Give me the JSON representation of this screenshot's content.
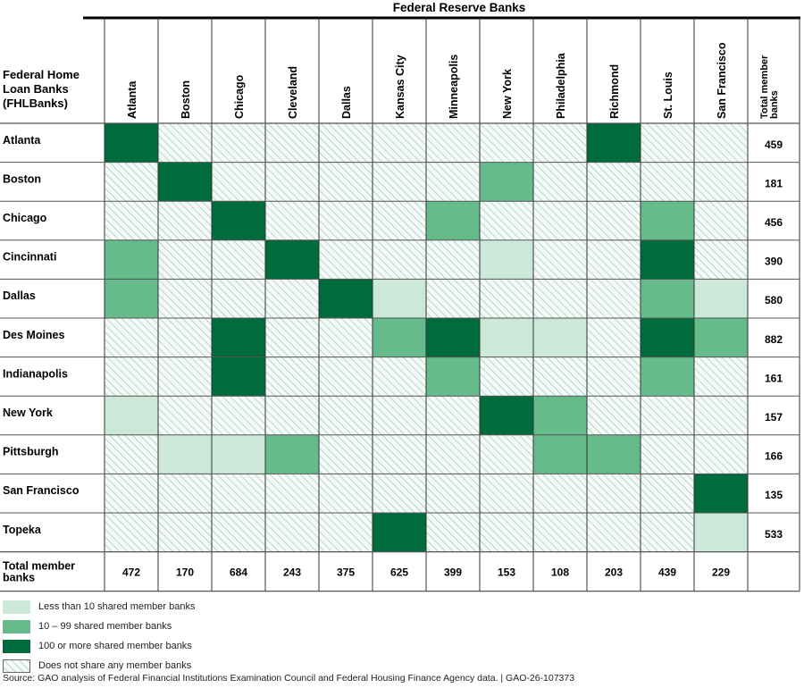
{
  "chart_data": {
    "type": "heatmap",
    "title": "Federal Reserve Banks",
    "row_header": "Federal Home Loan Banks (FHLBanks)",
    "row_header_lines": [
      "Federal Home",
      "Loan Banks",
      "(FHLBanks)"
    ],
    "columns": [
      "Atlanta",
      "Boston",
      "Chicago",
      "Cleveland",
      "Dallas",
      "Kansas City",
      "Minneapolis",
      "New York",
      "Philadelphia",
      "Richmond",
      "St. Louis",
      "San Francisco"
    ],
    "total_column_header_lines": [
      "Total member",
      "banks"
    ],
    "rows": [
      "Atlanta",
      "Boston",
      "Chicago",
      "Cincinnati",
      "Dallas",
      "Des Moines",
      "Indianapolis",
      "New York",
      "Pittsburgh",
      "San Francisco",
      "Topeka"
    ],
    "total_row_header_lines": [
      "Total member",
      "banks"
    ],
    "category_scale": "0 = Does not share any member banks, 1 = Less than 10, 2 = 10 – 99, 3 = 100 or more",
    "values": [
      [
        3,
        0,
        0,
        0,
        0,
        0,
        0,
        0,
        0,
        3,
        0,
        0
      ],
      [
        0,
        3,
        0,
        0,
        0,
        0,
        0,
        2,
        0,
        0,
        0,
        0
      ],
      [
        0,
        0,
        3,
        0,
        0,
        0,
        2,
        0,
        0,
        0,
        2,
        0
      ],
      [
        2,
        0,
        0,
        3,
        0,
        0,
        0,
        1,
        0,
        0,
        3,
        0
      ],
      [
        2,
        0,
        0,
        0,
        3,
        1,
        0,
        0,
        0,
        0,
        2,
        1
      ],
      [
        0,
        0,
        3,
        0,
        0,
        2,
        3,
        1,
        1,
        0,
        3,
        2
      ],
      [
        0,
        0,
        3,
        0,
        0,
        0,
        2,
        0,
        0,
        0,
        2,
        0
      ],
      [
        1,
        0,
        0,
        0,
        0,
        0,
        0,
        3,
        2,
        0,
        0,
        0
      ],
      [
        0,
        1,
        1,
        2,
        0,
        0,
        0,
        0,
        2,
        2,
        0,
        0
      ],
      [
        0,
        0,
        0,
        0,
        0,
        0,
        0,
        0,
        0,
        0,
        0,
        3
      ],
      [
        0,
        0,
        0,
        0,
        0,
        3,
        0,
        0,
        0,
        0,
        0,
        1
      ]
    ],
    "row_totals": [
      459,
      181,
      456,
      390,
      580,
      882,
      161,
      157,
      166,
      135,
      533
    ],
    "column_totals": [
      472,
      170,
      684,
      243,
      375,
      625,
      399,
      153,
      108,
      203,
      439,
      229
    ],
    "legend": [
      {
        "label": "Less than 10 shared member banks",
        "level": 1,
        "color": "#cce8d8"
      },
      {
        "label": "10 – 99 shared member banks",
        "level": 2,
        "color": "#66bb8a"
      },
      {
        "label": "100 or more shared member banks",
        "level": 3,
        "color": "#006b3c"
      },
      {
        "label": "Does not share any member banks",
        "level": 0,
        "color": "#ffffff"
      }
    ],
    "hatch_color": "#5a9a8a",
    "legend_position": "bottom-left"
  },
  "source": "Source: GAO analysis of Federal Financial Institutions Examination Council and Federal Housing Finance Agency data.  |  GAO-26-107373"
}
